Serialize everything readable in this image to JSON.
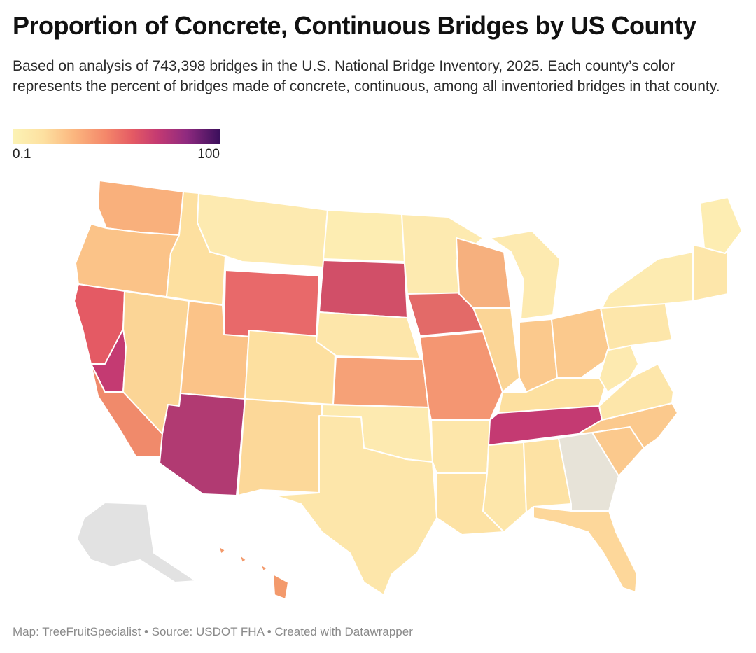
{
  "header": {
    "title": "Proportion of Concrete, Continuous Bridges by US County",
    "subtitle": "Based on analysis of 743,398 bridges in the U.S. National Bridge Inventory, 2025. Each county’s color represents the percent of bridges made of concrete, continuous, among all inventoried bridges in that county."
  },
  "legend": {
    "min_label": "0.1",
    "max_label": "100",
    "colors": [
      "#fcf3b5",
      "#fde0a0",
      "#fbb57e",
      "#f4876a",
      "#e45a64",
      "#c43a72",
      "#8f2a7f",
      "#3b0f5c"
    ],
    "no_data_color": "#d9d9d9"
  },
  "footer": {
    "credit": "Map: TreeFruitSpecialist • Source: USDOT FHA • Created with Datawrapper"
  },
  "map_regions": [
    {
      "name": "washington",
      "fill": "#f9b07c"
    },
    {
      "name": "oregon",
      "fill": "#fbc388"
    },
    {
      "name": "california-north",
      "fill": "#e45a64"
    },
    {
      "name": "california-central",
      "fill": "#c43a72"
    },
    {
      "name": "california-south",
      "fill": "#f08a6b"
    },
    {
      "name": "nevada",
      "fill": "#fbd596"
    },
    {
      "name": "idaho",
      "fill": "#fde0a0"
    },
    {
      "name": "montana",
      "fill": "#fdeab0"
    },
    {
      "name": "wyoming",
      "fill": "#e8696a"
    },
    {
      "name": "utah",
      "fill": "#fbc388"
    },
    {
      "name": "colorado",
      "fill": "#fde0a0"
    },
    {
      "name": "arizona",
      "fill": "#b13a72"
    },
    {
      "name": "new-mexico",
      "fill": "#fcd899"
    },
    {
      "name": "north-dakota",
      "fill": "#fdedb2"
    },
    {
      "name": "south-dakota",
      "fill": "#d14f68"
    },
    {
      "name": "nebraska",
      "fill": "#fde6aa"
    },
    {
      "name": "kansas",
      "fill": "#f6a177"
    },
    {
      "name": "oklahoma",
      "fill": "#fdeab0"
    },
    {
      "name": "texas",
      "fill": "#fde6aa"
    },
    {
      "name": "minnesota",
      "fill": "#fdeab0"
    },
    {
      "name": "iowa",
      "fill": "#e36a68"
    },
    {
      "name": "missouri",
      "fill": "#f49672"
    },
    {
      "name": "arkansas",
      "fill": "#fde6aa"
    },
    {
      "name": "louisiana",
      "fill": "#fde2a4"
    },
    {
      "name": "wisconsin",
      "fill": "#f6b07e"
    },
    {
      "name": "illinois",
      "fill": "#fbd596"
    },
    {
      "name": "michigan",
      "fill": "#fdeab0"
    },
    {
      "name": "indiana",
      "fill": "#fbc98d"
    },
    {
      "name": "ohio",
      "fill": "#fbc98d"
    },
    {
      "name": "kentucky",
      "fill": "#fde0a0"
    },
    {
      "name": "tennessee",
      "fill": "#c43a72"
    },
    {
      "name": "mississippi",
      "fill": "#fde6aa"
    },
    {
      "name": "alabama",
      "fill": "#fde2a4"
    },
    {
      "name": "georgia",
      "fill": "#e7e3d8"
    },
    {
      "name": "florida",
      "fill": "#fdd79a"
    },
    {
      "name": "south-carolina",
      "fill": "#fbc98d"
    },
    {
      "name": "north-carolina",
      "fill": "#fbc98d"
    },
    {
      "name": "virginia",
      "fill": "#fde6aa"
    },
    {
      "name": "west-virginia",
      "fill": "#fdeab0"
    },
    {
      "name": "pennsylvania",
      "fill": "#fde6aa"
    },
    {
      "name": "new-york",
      "fill": "#fdebb1"
    },
    {
      "name": "new-england",
      "fill": "#fde6aa"
    },
    {
      "name": "maine",
      "fill": "#fdedb2"
    },
    {
      "name": "alaska",
      "fill": "#e2e2e2"
    },
    {
      "name": "hawaii",
      "fill": "#f39a6c"
    }
  ]
}
